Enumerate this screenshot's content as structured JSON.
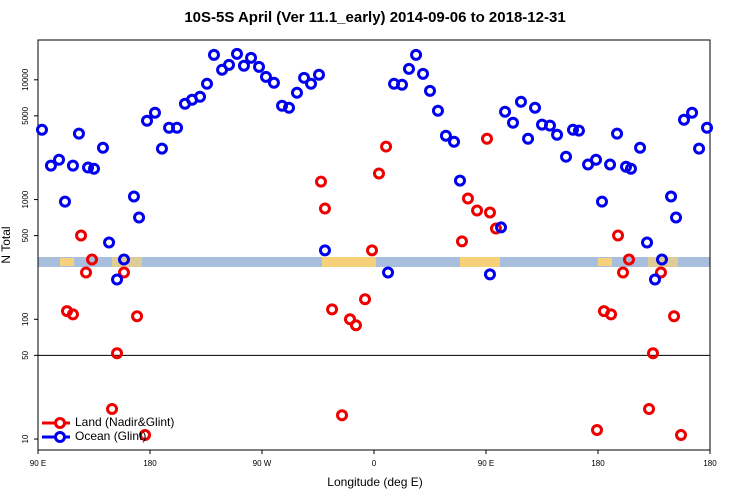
{
  "chart_data": {
    "type": "scatter",
    "title": "10S-5S April (Ver 11.1_early)   2014-09-06 to 2018-12-31",
    "x_label": "Longitude (deg E)",
    "y_label": "N Total",
    "xlim": [
      90,
      630
    ],
    "xticks": [
      {
        "value": 90,
        "label": "90 E"
      },
      {
        "value": 180,
        "label": "180"
      },
      {
        "value": 270,
        "label": "90 W"
      },
      {
        "value": 360,
        "label": "0"
      },
      {
        "value": 450,
        "label": "90 E"
      },
      {
        "value": 540,
        "label": "180"
      },
      {
        "value": 630,
        "label": "180"
      }
    ],
    "ylim": [
      8.1,
      21500
    ],
    "yticks": [
      10,
      50,
      100,
      500,
      1000,
      5000,
      10000
    ],
    "log_y": true,
    "reference_line": 50,
    "legend": "bottom-left",
    "series": [
      {
        "name": "Land (Nadir&Glint)",
        "color": "#ee0000",
        "x": [
          113.3,
          118.1,
          124.6,
          128.6,
          133.4,
          149.5,
          153.5,
          159.1,
          169.6,
          176,
          317.4,
          320.6,
          326.3,
          334.3,
          340.7,
          345.5,
          352.8,
          358.4,
          364,
          369.7,
          430.7,
          435.5,
          442.8,
          450.8,
          453.2,
          458,
          539.2,
          544.8,
          550.5,
          556.1,
          560.1,
          564.9,
          581,
          584.2,
          590.6,
          601.1,
          606.7
        ],
        "values": [
          117,
          110,
          501,
          246,
          316,
          17.8,
          52.1,
          246,
          106,
          10.8,
          1410,
          841,
          121,
          15.8,
          100,
          89.1,
          147,
          376,
          1650,
          2770,
          447,
          1020,
          810,
          3220,
          779,
          573,
          11.9,
          117,
          110,
          501,
          246,
          316,
          17.8,
          52.1,
          246,
          106,
          10.8
        ]
      },
      {
        "name": "Ocean (Glint)",
        "color": "#0000ee",
        "x": [
          93.2,
          100.4,
          106.9,
          111.7,
          118.1,
          122.9,
          130.2,
          135,
          142.2,
          147.1,
          153.5,
          159.1,
          167.1,
          171.2,
          177.6,
          184,
          189.6,
          195.3,
          201.7,
          208.1,
          213.8,
          220.2,
          225.8,
          231.4,
          237.9,
          243.5,
          249.9,
          255.5,
          261.2,
          267.6,
          273.2,
          279.6,
          286.1,
          291.7,
          298.1,
          303.8,
          309.4,
          315.8,
          320.6,
          371.3,
          376.1,
          382.5,
          388.1,
          393.8,
          399.4,
          405,
          411.4,
          417.8,
          424.3,
          429.1,
          453.2,
          462.1,
          465.3,
          471.7,
          478.1,
          483.8,
          489.4,
          495,
          501.4,
          507.1,
          514.3,
          519.9,
          524.7,
          532,
          538.4,
          543.2,
          549.7,
          555.3,
          562.5,
          566.5,
          573.8,
          579.4,
          585.8,
          591.4,
          598.7,
          602.7,
          609.1,
          615.6,
          621.2,
          627.6
        ],
        "values": [
          3830,
          1920,
          2150,
          960,
          1920,
          3550,
          1850,
          1810,
          2710,
          438,
          215,
          316,
          1060,
          708,
          4550,
          5310,
          2660,
          3980,
          3980,
          6310,
          6810,
          7220,
          9260,
          16160,
          12120,
          13340,
          16480,
          13090,
          15260,
          12830,
          10590,
          9440,
          6070,
          5840,
          7790,
          10390,
          9260,
          11010,
          376,
          246,
          9260,
          9090,
          12350,
          16160,
          11220,
          8090,
          5520,
          3410,
          3040,
          1440,
          237,
          585,
          5410,
          4380,
          6560,
          3220,
          5840,
          4220,
          4140,
          3480,
          2280,
          3830,
          3760,
          1960,
          2150,
          960,
          1960,
          3550,
          1880,
          1810,
          2710,
          438,
          215,
          316,
          1060,
          708,
          4640,
          5310,
          2660,
          3980
        ]
      }
    ]
  }
}
